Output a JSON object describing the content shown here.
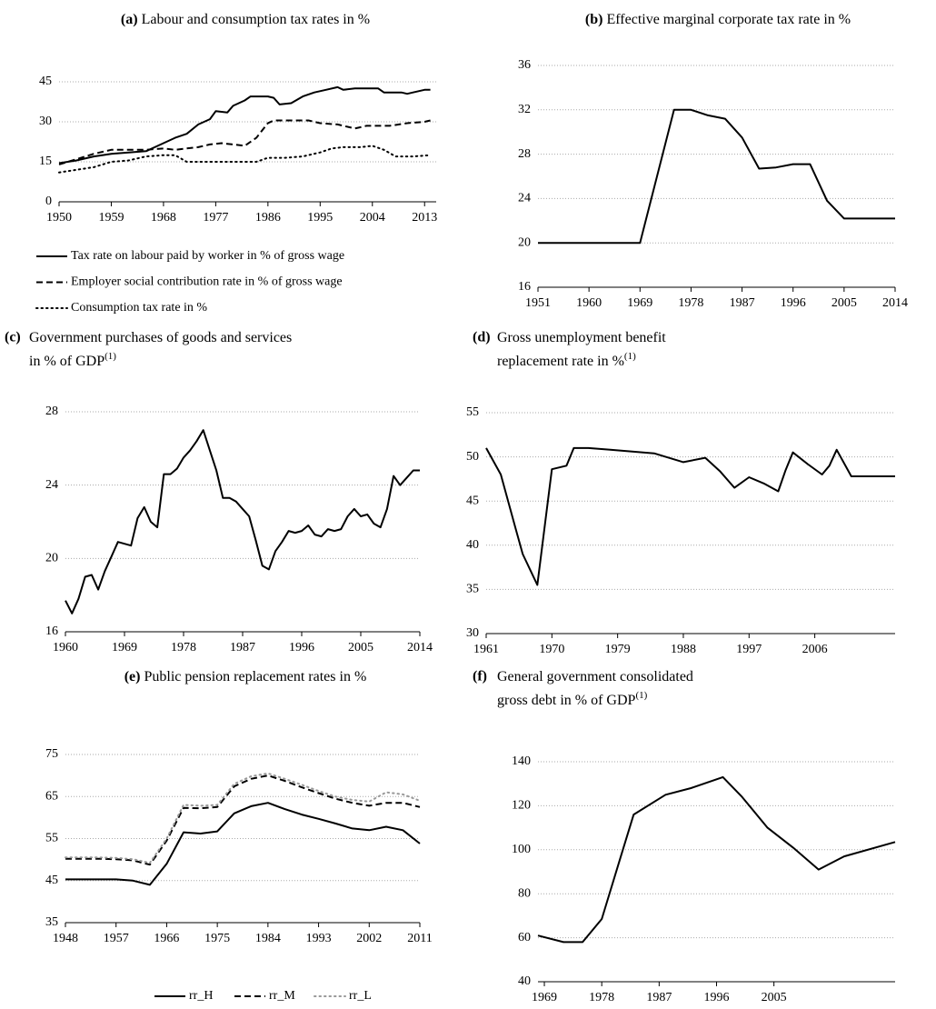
{
  "chart_data": [
    {
      "type": "line",
      "panel": "(a)",
      "title": [
        "Labour and consumption tax rates in %"
      ],
      "xlim": [
        1950,
        2015
      ],
      "xticks": [
        1950,
        1959,
        1968,
        1977,
        1986,
        1995,
        2004,
        2013
      ],
      "ylim": [
        0,
        45
      ],
      "yticks": [
        0,
        15,
        30,
        45
      ],
      "grid": true,
      "legend": "bottom-vertical",
      "series": [
        {
          "name": "Tax rate on labour paid by worker in % of gross wage",
          "color": "#000000",
          "dash": "solid",
          "x": [
            1950,
            1953,
            1956,
            1959,
            1962,
            1965,
            1968,
            1970,
            1972,
            1974,
            1976,
            1977,
            1979,
            1980,
            1982,
            1983,
            1986,
            1987,
            1988,
            1990,
            1992,
            1994,
            1996,
            1998,
            1999,
            2001,
            2003,
            2005,
            2006,
            2009,
            2010,
            2011,
            2013,
            2014
          ],
          "values": [
            14.5,
            15.5,
            17,
            18,
            18.5,
            19,
            22,
            24,
            25.5,
            29,
            31,
            34,
            33.5,
            36,
            38,
            39.5,
            39.5,
            39,
            36.5,
            37,
            39.5,
            41,
            42,
            43,
            42,
            42.5,
            42.5,
            42.5,
            41,
            41,
            40.5,
            41,
            42,
            42
          ]
        },
        {
          "name": "Employer social contribution rate in % of gross wage",
          "color": "#000000",
          "dash": "dashed",
          "x": [
            1950,
            1953,
            1956,
            1959,
            1962,
            1965,
            1968,
            1970,
            1972,
            1974,
            1976,
            1978,
            1980,
            1982,
            1984,
            1986,
            1987,
            1989,
            1991,
            1993,
            1995,
            1998,
            2000,
            2001,
            2003,
            2005,
            2007,
            2010,
            2013,
            2014
          ],
          "values": [
            14,
            16,
            18,
            19.5,
            19.5,
            19.5,
            20,
            19.5,
            20,
            20.5,
            21.5,
            22,
            21.5,
            21,
            24,
            29.5,
            30.5,
            30.5,
            30.5,
            30.5,
            29.5,
            29,
            28,
            27.5,
            28.5,
            28.5,
            28.5,
            29.5,
            30,
            30.5
          ]
        },
        {
          "name": "Consumption tax rate in %",
          "color": "#000000",
          "dash": "dotted",
          "x": [
            1950,
            1953,
            1956,
            1959,
            1962,
            1965,
            1968,
            1970,
            1972,
            1975,
            1978,
            1981,
            1984,
            1986,
            1989,
            1992,
            1995,
            1997,
            1999,
            2002,
            2004,
            2006,
            2008,
            2011,
            2014
          ],
          "values": [
            11,
            12,
            13,
            15,
            15.5,
            17,
            17.5,
            17.5,
            15,
            15,
            15,
            15,
            15,
            16.5,
            16.5,
            17,
            18.5,
            20,
            20.5,
            20.5,
            21,
            19.5,
            17,
            17,
            17.5
          ]
        }
      ]
    },
    {
      "type": "line",
      "panel": "(b)",
      "title": [
        "Effective marginal corporate tax rate in %"
      ],
      "xlim": [
        1951,
        2014
      ],
      "xticks": [
        1951,
        1960,
        1969,
        1978,
        1987,
        1996,
        2005,
        2014
      ],
      "ylim": [
        16,
        36
      ],
      "yticks": [
        16,
        20,
        24,
        28,
        32,
        36
      ],
      "grid": true,
      "series": [
        {
          "color": "#000000",
          "dash": "solid",
          "x": [
            1951,
            1969,
            1972,
            1975,
            1978,
            1981,
            1984,
            1987,
            1990,
            1993,
            1996,
            1999,
            2002,
            2005,
            2014
          ],
          "values": [
            20,
            20,
            26,
            32,
            32,
            31.5,
            31.2,
            29.5,
            26.7,
            26.8,
            27.1,
            27.1,
            23.8,
            22.2,
            22.2
          ]
        }
      ]
    },
    {
      "type": "line",
      "panel": "(c)",
      "title": [
        "Government purchases of goods and services",
        "in % of GDP"
      ],
      "title_note": "(1)",
      "xlim": [
        1960,
        2014
      ],
      "xticks": [
        1960,
        1969,
        1978,
        1987,
        1996,
        2005,
        2014
      ],
      "ylim": [
        16,
        28
      ],
      "yticks": [
        16,
        20,
        24,
        28
      ],
      "grid": true,
      "series": [
        {
          "color": "#000000",
          "dash": "solid",
          "x": [
            1960,
            1961,
            1962,
            1963,
            1964,
            1965,
            1966,
            1967,
            1968,
            1969,
            1970,
            1971,
            1972,
            1973,
            1974,
            1975,
            1976,
            1977,
            1978,
            1979,
            1980,
            1981,
            1982,
            1983,
            1984,
            1985,
            1986,
            1987,
            1988,
            1989,
            1990,
            1991,
            1992,
            1993,
            1994,
            1995,
            1996,
            1997,
            1998,
            1999,
            2000,
            2001,
            2002,
            2003,
            2004,
            2005,
            2006,
            2007,
            2008,
            2009,
            2010,
            2011,
            2012,
            2013,
            2014
          ],
          "values": [
            17.7,
            17.0,
            17.8,
            19.0,
            19.1,
            18.3,
            19.3,
            20.1,
            20.9,
            20.8,
            20.7,
            22.2,
            22.8,
            22.0,
            21.7,
            24.6,
            24.6,
            24.9,
            25.5,
            25.9,
            26.4,
            27.0,
            25.9,
            24.8,
            23.3,
            23.3,
            23.1,
            22.7,
            22.3,
            21.0,
            19.6,
            19.4,
            20.4,
            20.9,
            21.5,
            21.4,
            21.5,
            21.8,
            21.3,
            21.2,
            21.6,
            21.5,
            21.6,
            22.3,
            22.7,
            22.3,
            22.4,
            21.9,
            21.7,
            22.7,
            24.5,
            24.0,
            24.4,
            24.8,
            24.8
          ]
        }
      ]
    },
    {
      "type": "line",
      "panel": "(d)",
      "title": [
        "Gross unemployment benefit",
        "replacement rate in %"
      ],
      "title_note": "(1)",
      "xlim": [
        1961,
        2017
      ],
      "xticks": [
        1961,
        1970,
        1979,
        1988,
        1997,
        2006
      ],
      "ylim": [
        30,
        55
      ],
      "yticks": [
        30,
        35,
        40,
        45,
        50,
        55
      ],
      "grid": true,
      "series": [
        {
          "color": "#000000",
          "dash": "solid",
          "x": [
            1961,
            1963,
            1965,
            1966,
            1968,
            1970,
            1972,
            1973,
            1975,
            1978,
            1981,
            1984,
            1986,
            1988,
            1991,
            1993,
            1995,
            1997,
            1999,
            2001,
            2002,
            2003,
            2005,
            2007,
            2008,
            2009,
            2011,
            2017
          ],
          "values": [
            51,
            48,
            42,
            39,
            35.5,
            48.6,
            49,
            51,
            51,
            50.8,
            50.6,
            50.4,
            49.9,
            49.4,
            49.9,
            48.4,
            46.5,
            47.7,
            47,
            46.1,
            48.5,
            50.5,
            49.2,
            48,
            49,
            50.8,
            47.8,
            47.8
          ]
        }
      ]
    },
    {
      "type": "line",
      "panel": "(e)",
      "title": [
        "Public pension replacement rates in %"
      ],
      "xlim": [
        1948,
        2011
      ],
      "xticks": [
        1948,
        1957,
        1966,
        1975,
        1984,
        1993,
        2002,
        2011
      ],
      "ylim": [
        35,
        75
      ],
      "yticks": [
        35,
        45,
        55,
        65,
        75
      ],
      "grid": true,
      "legend": "bottom-horizontal",
      "x": [
        1948,
        1951,
        1954,
        1957,
        1960,
        1963,
        1966,
        1969,
        1972,
        1975,
        1978,
        1981,
        1984,
        1987,
        1990,
        1993,
        1996,
        1999,
        2002,
        2005,
        2008,
        2011
      ],
      "series": [
        {
          "name": "rr_H",
          "color": "#000000",
          "dash": "solid",
          "values": [
            45.3,
            45.3,
            45.3,
            45.3,
            45,
            44,
            49,
            56.5,
            56.2,
            56.7,
            61,
            62.7,
            63.5,
            62,
            60.7,
            59.7,
            58.6,
            57.4,
            57,
            57.8,
            57,
            53.8
          ]
        },
        {
          "name": "rr_M",
          "color": "#000000",
          "dash": "dashed",
          "values": [
            50.2,
            50.2,
            50.2,
            50.1,
            49.8,
            48.8,
            54.5,
            62.3,
            62.2,
            62.5,
            67.4,
            69.2,
            70,
            68.7,
            67.2,
            65.8,
            64.5,
            63.5,
            62.8,
            63.5,
            63.5,
            62.5
          ]
        },
        {
          "name": "rr_L",
          "color": "#999999",
          "dash": "dotted",
          "values": [
            50.5,
            50.5,
            50.5,
            50.4,
            50.1,
            49.2,
            55,
            63,
            62.8,
            63,
            68,
            69.8,
            70.5,
            69.2,
            67.8,
            66.3,
            65,
            64.2,
            63.8,
            66,
            65.5,
            64
          ]
        }
      ]
    },
    {
      "type": "line",
      "panel": "(f)",
      "title": [
        "General government consolidated",
        "gross debt in % of GDP"
      ],
      "title_note": "(1)",
      "xlim": [
        1968,
        2024
      ],
      "xticks": [
        1969,
        1978,
        1987,
        1996,
        2005
      ],
      "ylim": [
        40,
        140
      ],
      "yticks": [
        40,
        60,
        80,
        100,
        120,
        140
      ],
      "grid": true,
      "series": [
        {
          "color": "#000000",
          "dash": "solid",
          "x": [
            1968,
            1972,
            1975,
            1978,
            1981,
            1983,
            1988,
            1992,
            1997,
            2000,
            2004,
            2008,
            2012,
            2016,
            2024
          ],
          "values": [
            61,
            58,
            58,
            68.5,
            97,
            116,
            125,
            128,
            133,
            124,
            110,
            101,
            91,
            97,
            103.5
          ]
        }
      ]
    }
  ]
}
